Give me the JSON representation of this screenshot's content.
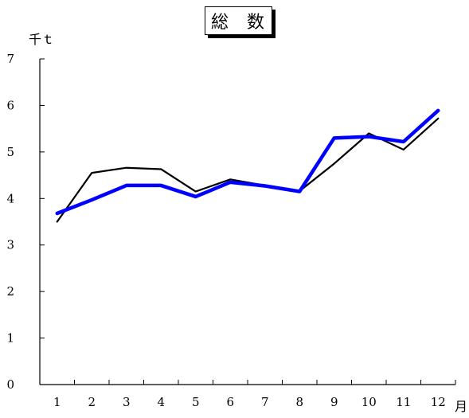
{
  "chart_data": {
    "type": "line",
    "title": "総 数",
    "ylabel": "千ｔ",
    "xlabel": "月",
    "ylim": [
      0,
      7
    ],
    "yticks": [
      "0",
      "1",
      "2",
      "3",
      "4",
      "5",
      "6",
      "7"
    ],
    "categories": [
      "1",
      "2",
      "3",
      "4",
      "5",
      "6",
      "7",
      "8",
      "9",
      "10",
      "11",
      "12"
    ],
    "grid": false,
    "series": [
      {
        "color": "#000000",
        "values": [
          3.5,
          4.55,
          4.66,
          4.63,
          4.15,
          4.41,
          4.28,
          4.16,
          4.75,
          5.4,
          5.05,
          5.72
        ]
      },
      {
        "color": "#0000ff",
        "values": [
          3.68,
          3.97,
          4.28,
          4.28,
          4.04,
          4.35,
          4.27,
          4.15,
          5.3,
          5.33,
          5.22,
          5.89
        ]
      }
    ]
  }
}
